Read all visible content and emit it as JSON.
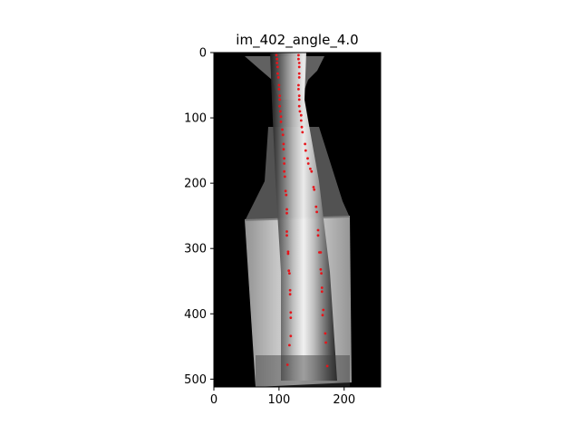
{
  "chart_data": {
    "type": "scatter",
    "title": "im_402_angle_4.0",
    "xlabel": "",
    "ylabel": "",
    "xlim": [
      0,
      256
    ],
    "ylim": [
      512,
      0
    ],
    "xticks": [
      0,
      100,
      200
    ],
    "yticks": [
      0,
      100,
      200,
      300,
      400,
      500
    ],
    "grid": false,
    "background": "x-ray image of spine (grayscale)",
    "colors": {
      "points": "#e8141a",
      "axes": "#000000",
      "image_bg": "#000000"
    },
    "series": [
      {
        "values": [
          {
            "x": 96,
            "y": 4
          },
          {
            "x": 130,
            "y": 4
          },
          {
            "x": 97,
            "y": 10
          },
          {
            "x": 130,
            "y": 10
          },
          {
            "x": 97,
            "y": 16
          },
          {
            "x": 131,
            "y": 16
          },
          {
            "x": 98,
            "y": 22
          },
          {
            "x": 131,
            "y": 22
          },
          {
            "x": 98,
            "y": 32
          },
          {
            "x": 131,
            "y": 32
          },
          {
            "x": 99,
            "y": 38
          },
          {
            "x": 131,
            "y": 38
          },
          {
            "x": 100,
            "y": 50
          },
          {
            "x": 130,
            "y": 50
          },
          {
            "x": 100,
            "y": 56
          },
          {
            "x": 130,
            "y": 56
          },
          {
            "x": 101,
            "y": 66
          },
          {
            "x": 131,
            "y": 66
          },
          {
            "x": 101,
            "y": 72
          },
          {
            "x": 131,
            "y": 72
          },
          {
            "x": 101,
            "y": 82
          },
          {
            "x": 131,
            "y": 82
          },
          {
            "x": 102,
            "y": 90
          },
          {
            "x": 132,
            "y": 90
          },
          {
            "x": 103,
            "y": 98
          },
          {
            "x": 134,
            "y": 96
          },
          {
            "x": 103,
            "y": 106
          },
          {
            "x": 134,
            "y": 104
          },
          {
            "x": 105,
            "y": 118
          },
          {
            "x": 135,
            "y": 114
          },
          {
            "x": 106,
            "y": 126
          },
          {
            "x": 136,
            "y": 122
          },
          {
            "x": 107,
            "y": 140
          },
          {
            "x": 140,
            "y": 140
          },
          {
            "x": 107,
            "y": 148
          },
          {
            "x": 141,
            "y": 150
          },
          {
            "x": 108,
            "y": 162
          },
          {
            "x": 144,
            "y": 162
          },
          {
            "x": 108,
            "y": 170
          },
          {
            "x": 145,
            "y": 170
          },
          {
            "x": 108,
            "y": 182
          },
          {
            "x": 148,
            "y": 178
          },
          {
            "x": 109,
            "y": 190
          },
          {
            "x": 150,
            "y": 182
          },
          {
            "x": 110,
            "y": 212
          },
          {
            "x": 153,
            "y": 206
          },
          {
            "x": 111,
            "y": 218
          },
          {
            "x": 154,
            "y": 210
          },
          {
            "x": 112,
            "y": 240
          },
          {
            "x": 157,
            "y": 236
          },
          {
            "x": 112,
            "y": 246
          },
          {
            "x": 158,
            "y": 244
          },
          {
            "x": 112,
            "y": 274
          },
          {
            "x": 160,
            "y": 272
          },
          {
            "x": 112,
            "y": 280
          },
          {
            "x": 160,
            "y": 280
          },
          {
            "x": 114,
            "y": 305
          },
          {
            "x": 162,
            "y": 306
          },
          {
            "x": 114,
            "y": 308
          },
          {
            "x": 164,
            "y": 306
          },
          {
            "x": 115,
            "y": 334
          },
          {
            "x": 164,
            "y": 332
          },
          {
            "x": 116,
            "y": 338
          },
          {
            "x": 165,
            "y": 338
          },
          {
            "x": 117,
            "y": 364
          },
          {
            "x": 166,
            "y": 360
          },
          {
            "x": 117,
            "y": 370
          },
          {
            "x": 166,
            "y": 366
          },
          {
            "x": 118,
            "y": 398
          },
          {
            "x": 168,
            "y": 394
          },
          {
            "x": 118,
            "y": 406
          },
          {
            "x": 167,
            "y": 402
          },
          {
            "x": 118,
            "y": 434
          },
          {
            "x": 171,
            "y": 430
          },
          {
            "x": 116,
            "y": 448
          },
          {
            "x": 172,
            "y": 444
          },
          {
            "x": 113,
            "y": 478
          },
          {
            "x": 174,
            "y": 480
          }
        ]
      }
    ]
  }
}
